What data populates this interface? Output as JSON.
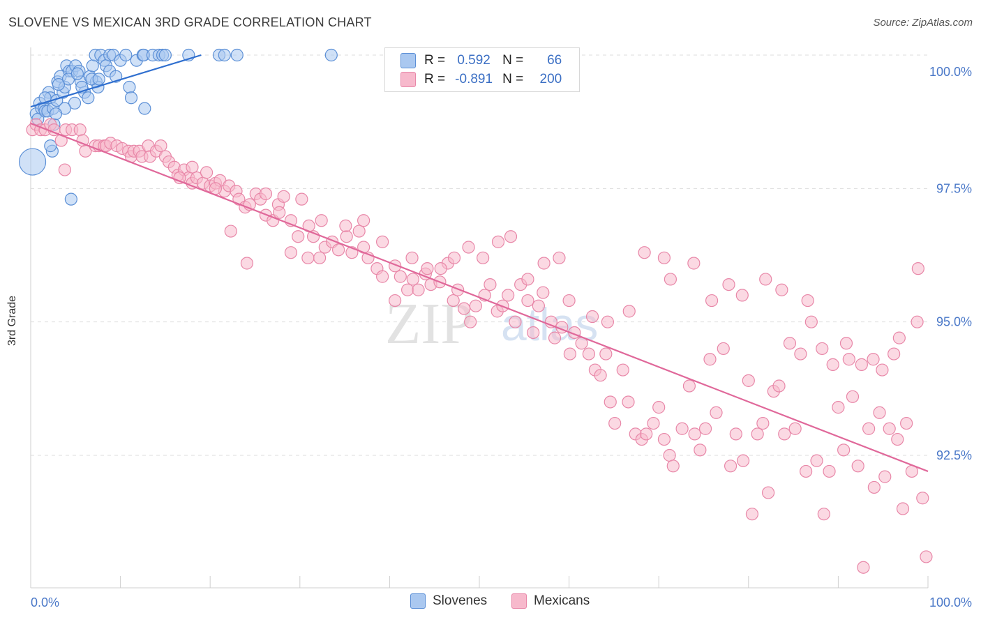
{
  "header": {
    "title": "SLOVENE VS MEXICAN 3RD GRADE CORRELATION CHART",
    "source": "Source: ZipAtlas.com"
  },
  "legend": {
    "series": [
      {
        "r_label": "R =",
        "r_value": "0.592",
        "n_label": "N =",
        "n_value": "66"
      },
      {
        "r_label": "R =",
        "r_value": "-0.891",
        "n_label": "N =",
        "n_value": "200"
      }
    ]
  },
  "bottom_legend": {
    "items": [
      "Slovenes",
      "Mexicans"
    ]
  },
  "watermark": {
    "zip": "ZIP",
    "atlas": "atlas"
  },
  "colors": {
    "slovene_fill": "#aac8f0",
    "slovene_stroke": "#5b8fd6",
    "slovene_line": "#2f6fcf",
    "mexican_fill": "#f7b9cc",
    "mexican_stroke": "#e887a8",
    "mexican_line": "#e0689a",
    "tick_label": "#4a78c8",
    "grid": "#dddddd"
  },
  "chart_data": {
    "type": "scatter",
    "title": "SLOVENE VS MEXICAN 3RD GRADE CORRELATION CHART",
    "xlabel": "",
    "ylabel": "3rd Grade",
    "xlim": [
      0,
      100
    ],
    "ylim": [
      90.2,
      100.2
    ],
    "x_tick_labels": [
      "0.0%",
      "100.0%"
    ],
    "y_ticks": [
      92.5,
      95.0,
      97.5,
      100.0
    ],
    "y_tick_labels": [
      "92.5%",
      "95.0%",
      "97.5%",
      "100.0%"
    ],
    "grid": "horizontal dashed",
    "legend_placement": "top-center",
    "series": [
      {
        "name": "Slovenes",
        "r": 0.592,
        "n": 66,
        "trend": {
          "x": [
            0,
            19
          ],
          "y": [
            99.03,
            100.0
          ]
        },
        "points": [
          {
            "x": 0.2,
            "y": 98.0,
            "big": true
          },
          [
            0.6,
            98.9
          ],
          [
            0.8,
            98.8
          ],
          [
            1.0,
            99.1
          ],
          [
            1.2,
            99.0
          ],
          [
            1.5,
            99.0
          ],
          [
            1.6,
            98.95
          ],
          [
            1.9,
            98.95
          ],
          [
            2.0,
            99.3
          ],
          [
            2.2,
            99.2
          ],
          [
            2.5,
            99.0
          ],
          [
            2.6,
            98.7
          ],
          [
            2.9,
            99.15
          ],
          [
            3.0,
            99.5
          ],
          [
            3.3,
            99.6
          ],
          [
            3.6,
            99.3
          ],
          [
            3.8,
            99.4
          ],
          [
            4.0,
            99.8
          ],
          [
            4.3,
            99.7
          ],
          [
            4.6,
            99.7
          ],
          [
            4.9,
            99.1
          ],
          [
            5.0,
            99.8
          ],
          [
            5.4,
            99.7
          ],
          [
            5.6,
            99.5
          ],
          [
            6.0,
            99.3
          ],
          [
            6.4,
            99.2
          ],
          [
            6.6,
            99.6
          ],
          [
            6.9,
            99.8
          ],
          [
            7.2,
            100.0
          ],
          [
            7.3,
            99.5
          ],
          [
            7.5,
            99.4
          ],
          [
            7.8,
            100.0
          ],
          [
            8.2,
            99.9
          ],
          [
            8.4,
            99.8
          ],
          [
            8.8,
            100.0
          ],
          [
            8.8,
            99.7
          ],
          [
            9.2,
            100.0
          ],
          [
            9.5,
            99.6
          ],
          [
            10.0,
            99.9
          ],
          [
            10.6,
            100.0
          ],
          [
            11.0,
            99.4
          ],
          [
            11.2,
            99.2
          ],
          [
            11.8,
            99.9
          ],
          [
            12.5,
            100.0
          ],
          [
            12.6,
            100.0
          ],
          [
            13.6,
            100.0
          ],
          [
            14.3,
            100.0
          ],
          [
            14.7,
            100.0
          ],
          [
            15.0,
            100.0
          ],
          [
            17.6,
            100.0
          ],
          [
            21.0,
            100.0
          ],
          [
            21.6,
            100.0
          ],
          [
            23.0,
            100.0
          ],
          [
            33.5,
            100.0
          ],
          [
            2.4,
            98.2
          ],
          [
            2.2,
            98.3
          ],
          [
            4.5,
            97.3
          ],
          [
            12.7,
            99.0
          ],
          [
            3.8,
            99.0
          ],
          [
            1.6,
            99.2
          ],
          [
            2.8,
            98.9
          ],
          [
            5.7,
            99.4
          ],
          [
            4.2,
            99.55
          ],
          [
            6.8,
            99.55
          ],
          [
            3.1,
            99.45
          ],
          [
            5.2,
            99.65
          ],
          [
            7.6,
            99.55
          ]
        ]
      },
      {
        "name": "Mexicans",
        "r": -0.891,
        "n": 200,
        "trend": {
          "x": [
            0,
            100
          ],
          "y": [
            98.72,
            92.2
          ]
        },
        "points": [
          [
            0.2,
            98.6
          ],
          [
            0.6,
            98.7
          ],
          [
            1.1,
            98.6
          ],
          [
            1.6,
            98.6
          ],
          [
            2.2,
            98.7
          ],
          [
            2.6,
            98.6
          ],
          [
            3.4,
            98.4
          ],
          [
            3.9,
            98.6
          ],
          [
            4.6,
            98.6
          ],
          [
            5.5,
            98.6
          ],
          [
            5.8,
            98.4
          ],
          [
            6.1,
            98.2
          ],
          [
            7.2,
            98.3
          ],
          [
            7.6,
            98.3
          ],
          [
            8.2,
            98.3
          ],
          [
            8.4,
            98.3
          ],
          [
            8.9,
            98.35
          ],
          [
            9.6,
            98.3
          ],
          [
            10.2,
            98.25
          ],
          [
            10.9,
            98.2
          ],
          [
            11.2,
            98.1
          ],
          [
            11.5,
            98.2
          ],
          [
            12.1,
            98.2
          ],
          [
            12.4,
            98.1
          ],
          [
            13.1,
            98.3
          ],
          [
            13.3,
            98.1
          ],
          [
            14.0,
            98.2
          ],
          [
            14.5,
            98.3
          ],
          [
            15.0,
            98.1
          ],
          [
            15.4,
            98.0
          ],
          [
            16.0,
            97.9
          ],
          [
            16.4,
            97.75
          ],
          [
            17.1,
            97.85
          ],
          [
            17.6,
            97.7
          ],
          [
            18.0,
            97.6
          ],
          [
            18.5,
            97.7
          ],
          [
            19.2,
            97.6
          ],
          [
            19.6,
            97.8
          ],
          [
            20.0,
            97.55
          ],
          [
            20.6,
            97.6
          ],
          [
            21.1,
            97.65
          ],
          [
            21.6,
            97.45
          ],
          [
            22.1,
            97.55
          ],
          [
            22.9,
            97.45
          ],
          [
            23.2,
            97.3
          ],
          [
            23.9,
            97.15
          ],
          [
            24.4,
            97.2
          ],
          [
            25.1,
            97.4
          ],
          [
            25.6,
            97.3
          ],
          [
            26.2,
            97.0
          ],
          [
            27.0,
            96.9
          ],
          [
            27.6,
            97.2
          ],
          [
            28.2,
            97.35
          ],
          [
            29.0,
            96.9
          ],
          [
            29.8,
            96.6
          ],
          [
            30.2,
            97.3
          ],
          [
            31.0,
            96.8
          ],
          [
            31.5,
            96.6
          ],
          [
            32.2,
            96.2
          ],
          [
            32.8,
            96.4
          ],
          [
            33.6,
            96.5
          ],
          [
            34.3,
            96.35
          ],
          [
            35.2,
            96.6
          ],
          [
            35.8,
            96.3
          ],
          [
            36.6,
            96.7
          ],
          [
            37.1,
            96.4
          ],
          [
            37.6,
            96.2
          ],
          [
            38.6,
            96.0
          ],
          [
            39.2,
            95.85
          ],
          [
            40.6,
            96.05
          ],
          [
            41.2,
            95.85
          ],
          [
            42.0,
            95.6
          ],
          [
            42.6,
            95.8
          ],
          [
            43.2,
            95.6
          ],
          [
            44.0,
            95.9
          ],
          [
            44.6,
            95.7
          ],
          [
            45.6,
            95.75
          ],
          [
            46.5,
            96.1
          ],
          [
            47.1,
            95.4
          ],
          [
            47.6,
            95.6
          ],
          [
            48.3,
            95.25
          ],
          [
            49.0,
            95.0
          ],
          [
            49.6,
            95.3
          ],
          [
            50.6,
            95.5
          ],
          [
            51.2,
            95.7
          ],
          [
            52.0,
            95.2
          ],
          [
            52.6,
            95.3
          ],
          [
            53.2,
            95.5
          ],
          [
            54.0,
            95.0
          ],
          [
            54.6,
            95.7
          ],
          [
            55.4,
            95.4
          ],
          [
            56.0,
            94.8
          ],
          [
            56.6,
            95.3
          ],
          [
            57.1,
            95.55
          ],
          [
            58.0,
            95.0
          ],
          [
            58.4,
            94.7
          ],
          [
            59.2,
            94.9
          ],
          [
            60.1,
            94.4
          ],
          [
            60.6,
            94.8
          ],
          [
            61.4,
            94.6
          ],
          [
            62.2,
            94.4
          ],
          [
            62.9,
            94.1
          ],
          [
            63.5,
            94.0
          ],
          [
            64.1,
            94.4
          ],
          [
            64.6,
            93.5
          ],
          [
            65.1,
            93.1
          ],
          [
            66.0,
            94.1
          ],
          [
            66.6,
            93.5
          ],
          [
            67.4,
            92.9
          ],
          [
            68.1,
            92.8
          ],
          [
            68.6,
            92.9
          ],
          [
            69.4,
            93.1
          ],
          [
            70.0,
            93.4
          ],
          [
            70.6,
            92.8
          ],
          [
            71.2,
            92.5
          ],
          [
            71.6,
            92.3
          ],
          [
            72.6,
            93.0
          ],
          [
            73.4,
            93.8
          ],
          [
            74.0,
            92.9
          ],
          [
            74.6,
            92.6
          ],
          [
            75.2,
            93.0
          ],
          [
            75.7,
            94.3
          ],
          [
            76.4,
            93.3
          ],
          [
            77.2,
            94.5
          ],
          [
            78.0,
            92.3
          ],
          [
            78.6,
            92.9
          ],
          [
            79.4,
            92.4
          ],
          [
            80.0,
            93.9
          ],
          [
            80.4,
            91.4
          ],
          [
            81.0,
            92.9
          ],
          [
            81.6,
            93.1
          ],
          [
            82.2,
            91.8
          ],
          [
            82.8,
            93.7
          ],
          [
            83.4,
            93.8
          ],
          [
            84.0,
            92.9
          ],
          [
            84.6,
            94.6
          ],
          [
            85.2,
            93.0
          ],
          [
            85.8,
            94.4
          ],
          [
            86.4,
            92.2
          ],
          [
            87.0,
            95.0
          ],
          [
            87.6,
            92.4
          ],
          [
            88.4,
            91.4
          ],
          [
            89.0,
            92.2
          ],
          [
            89.4,
            94.2
          ],
          [
            90.0,
            93.4
          ],
          [
            90.6,
            92.6
          ],
          [
            91.2,
            94.3
          ],
          [
            91.6,
            93.6
          ],
          [
            92.2,
            92.3
          ],
          [
            92.8,
            90.4
          ],
          [
            93.4,
            93.0
          ],
          [
            94.0,
            91.9
          ],
          [
            94.6,
            93.3
          ],
          [
            95.2,
            92.1
          ],
          [
            95.7,
            93.0
          ],
          [
            96.2,
            94.4
          ],
          [
            96.6,
            92.8
          ],
          [
            97.2,
            91.5
          ],
          [
            97.6,
            93.1
          ],
          [
            98.2,
            92.2
          ],
          [
            98.8,
            95.0
          ],
          [
            99.4,
            91.7
          ],
          [
            99.8,
            90.6
          ],
          [
            98.9,
            96.0
          ],
          [
            96.8,
            94.7
          ],
          [
            94.9,
            94.1
          ],
          [
            93.9,
            94.3
          ],
          [
            92.6,
            94.2
          ],
          [
            90.9,
            94.6
          ],
          [
            88.2,
            94.5
          ],
          [
            86.6,
            95.4
          ],
          [
            83.7,
            95.6
          ],
          [
            81.9,
            95.8
          ],
          [
            79.3,
            95.5
          ],
          [
            77.8,
            95.7
          ],
          [
            75.9,
            95.4
          ],
          [
            73.9,
            96.1
          ],
          [
            71.3,
            95.8
          ],
          [
            70.6,
            96.2
          ],
          [
            68.4,
            96.3
          ],
          [
            66.7,
            95.2
          ],
          [
            64.3,
            95.0
          ],
          [
            62.6,
            95.1
          ],
          [
            60.0,
            95.4
          ],
          [
            58.9,
            96.2
          ],
          [
            57.2,
            96.1
          ],
          [
            55.4,
            95.8
          ],
          [
            53.5,
            96.6
          ],
          [
            52.1,
            96.5
          ],
          [
            50.4,
            96.2
          ],
          [
            48.8,
            96.4
          ],
          [
            47.2,
            96.2
          ],
          [
            45.7,
            96.0
          ],
          [
            44.2,
            96.0
          ],
          [
            42.5,
            96.2
          ],
          [
            40.6,
            95.4
          ],
          [
            39.2,
            96.5
          ],
          [
            37.1,
            96.9
          ],
          [
            35.1,
            96.8
          ],
          [
            32.4,
            96.9
          ],
          [
            30.9,
            96.2
          ],
          [
            29.0,
            96.3
          ],
          [
            27.7,
            97.05
          ],
          [
            26.2,
            97.4
          ],
          [
            24.1,
            96.1
          ],
          [
            22.3,
            96.7
          ],
          [
            20.6,
            97.5
          ],
          [
            18.0,
            97.9
          ],
          [
            16.6,
            97.7
          ],
          [
            3.8,
            97.85
          ]
        ]
      }
    ]
  }
}
